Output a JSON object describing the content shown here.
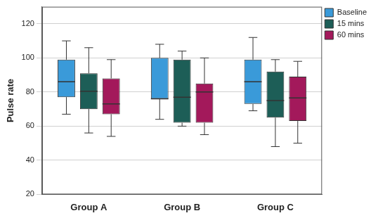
{
  "chart_data": {
    "type": "box",
    "y_label": "Pulse rate",
    "categories": [
      "Group A",
      "Group B",
      "Group C"
    ],
    "ylim": [
      20,
      130
    ],
    "yticks": [
      20,
      40,
      60,
      80,
      100,
      120
    ],
    "grid": true,
    "legend": "upper right",
    "series": [
      {
        "name": "Baseline",
        "color": "#3a9ad9",
        "values": [
          {
            "min": 67,
            "q1": 77,
            "median": 86,
            "q3": 99,
            "max": 110
          },
          {
            "min": 64,
            "q1": 76,
            "median": 76,
            "q3": 100,
            "max": 108
          },
          {
            "min": 69,
            "q1": 73,
            "median": 86,
            "q3": 99,
            "max": 112
          }
        ]
      },
      {
        "name": "15 mins",
        "color": "#1d5e57",
        "values": [
          {
            "min": 56,
            "q1": 70,
            "median": 80.5,
            "q3": 91,
            "max": 106
          },
          {
            "min": 60,
            "q1": 62,
            "median": 77,
            "q3": 99,
            "max": 104
          },
          {
            "min": 48,
            "q1": 65,
            "median": 75,
            "q3": 92,
            "max": 99
          }
        ]
      },
      {
        "name": "60 mins",
        "color": "#a3195b",
        "values": [
          {
            "min": 54,
            "q1": 67,
            "median": 73,
            "q3": 88,
            "max": 99
          },
          {
            "min": 55,
            "q1": 62,
            "median": 80,
            "q3": 85,
            "max": 100
          },
          {
            "min": 50,
            "q1": 63,
            "median": 76.5,
            "q3": 89,
            "max": 98
          }
        ]
      }
    ]
  }
}
